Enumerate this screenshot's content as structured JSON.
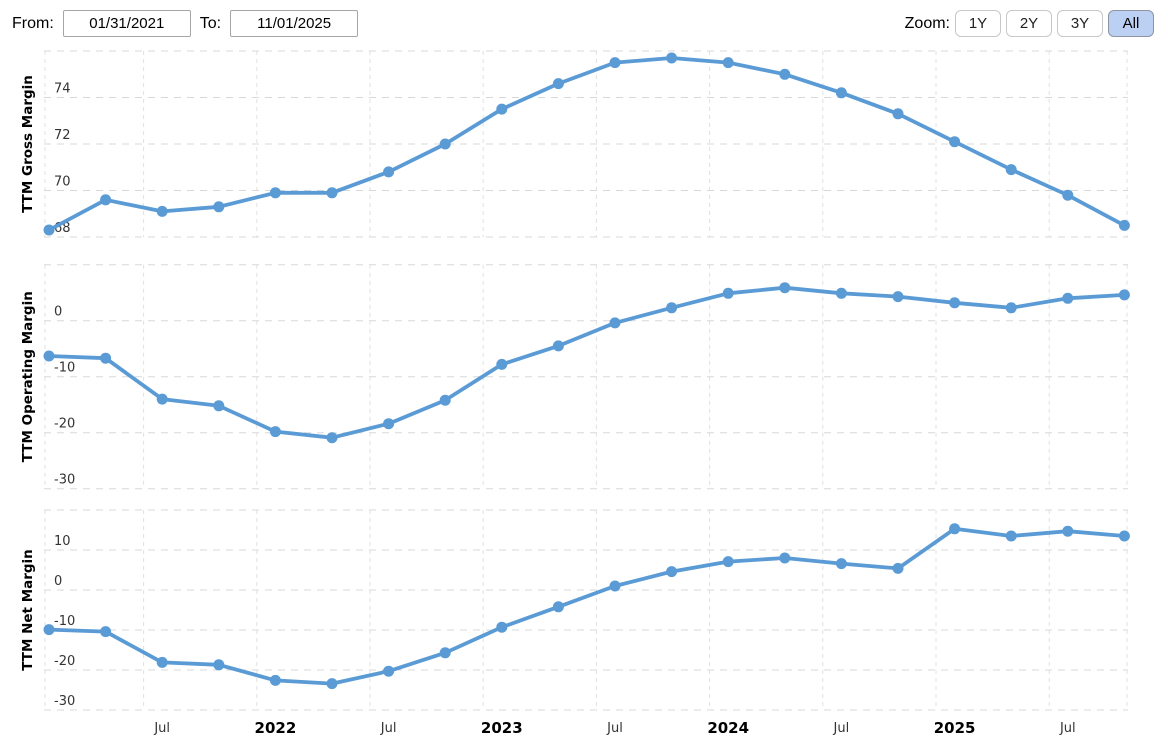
{
  "header": {
    "from_label": "From:",
    "from_value": "01/31/2021",
    "to_label": "To:",
    "to_value": "11/01/2025",
    "zoom_label": "Zoom:",
    "zoom_buttons": [
      {
        "label": "1Y",
        "active": false
      },
      {
        "label": "2Y",
        "active": false
      },
      {
        "label": "3Y",
        "active": false
      },
      {
        "label": "All",
        "active": true
      }
    ]
  },
  "colors": {
    "series_line": "#5b9bd5",
    "marker": "#5b9bd5",
    "grid_horizontal": "#d8d8d8",
    "grid_vertical": "#e0e0e0",
    "tick_text": "#333333",
    "year_text": "#000000",
    "axis_title_text": "#000000",
    "active_zoom_bg": "#bcd0f4"
  },
  "x_axis": {
    "tick_labels": [
      {
        "label": "Jul",
        "point_index": 2,
        "bold": false
      },
      {
        "label": "2022",
        "point_index": 4,
        "bold": true
      },
      {
        "label": "Jul",
        "point_index": 6,
        "bold": false
      },
      {
        "label": "2023",
        "point_index": 8,
        "bold": true
      },
      {
        "label": "Jul",
        "point_index": 10,
        "bold": false
      },
      {
        "label": "2024",
        "point_index": 12,
        "bold": true
      },
      {
        "label": "Jul",
        "point_index": 14,
        "bold": false
      },
      {
        "label": "2025",
        "point_index": 16,
        "bold": true
      },
      {
        "label": "Jul",
        "point_index": 18,
        "bold": false
      }
    ]
  },
  "chart_data": [
    {
      "type": "line",
      "ylabel": "TTM Gross Margin",
      "x": [
        "2021-01-31",
        "2021-04-30",
        "2021-07-31",
        "2021-10-31",
        "2022-01-31",
        "2022-04-30",
        "2022-07-31",
        "2022-10-31",
        "2023-01-31",
        "2023-04-30",
        "2023-07-31",
        "2023-10-31",
        "2024-01-31",
        "2024-04-30",
        "2024-07-31",
        "2024-10-31",
        "2025-01-31",
        "2025-04-30",
        "2025-07-31",
        "2025-10-31"
      ],
      "values": [
        68.3,
        69.6,
        69.1,
        69.3,
        69.9,
        69.9,
        70.8,
        72.0,
        73.5,
        74.6,
        75.5,
        75.7,
        75.5,
        75.0,
        74.2,
        73.3,
        72.1,
        70.9,
        69.8,
        68.5
      ],
      "ylim": [
        68,
        76
      ],
      "yticks": [
        74,
        72,
        70,
        68
      ],
      "grid": true,
      "legend": false
    },
    {
      "type": "line",
      "ylabel": "TTM Operating Margin",
      "x": [
        "2021-01-31",
        "2021-04-30",
        "2021-07-31",
        "2021-10-31",
        "2022-01-31",
        "2022-04-30",
        "2022-07-31",
        "2022-10-31",
        "2023-01-31",
        "2023-04-30",
        "2023-07-31",
        "2023-10-31",
        "2024-01-31",
        "2024-04-30",
        "2024-07-31",
        "2024-10-31",
        "2025-01-31",
        "2025-04-30",
        "2025-07-31",
        "2025-10-31"
      ],
      "values": [
        -6.3,
        -6.7,
        -14.0,
        -15.2,
        -19.8,
        -20.9,
        -18.4,
        -14.2,
        -7.8,
        -4.5,
        -0.4,
        2.3,
        4.9,
        5.9,
        4.9,
        4.3,
        3.2,
        2.3,
        4.0,
        4.6
      ],
      "ylim": [
        -30,
        10
      ],
      "yticks": [
        0,
        -10,
        -20,
        -30
      ],
      "grid": true,
      "legend": false
    },
    {
      "type": "line",
      "ylabel": "TTM Net Margin",
      "x": [
        "2021-01-31",
        "2021-04-30",
        "2021-07-31",
        "2021-10-31",
        "2022-01-31",
        "2022-04-30",
        "2022-07-31",
        "2022-10-31",
        "2023-01-31",
        "2023-04-30",
        "2023-07-31",
        "2023-10-31",
        "2024-01-31",
        "2024-04-30",
        "2024-07-31",
        "2024-10-31",
        "2025-01-31",
        "2025-04-30",
        "2025-07-31",
        "2025-10-31"
      ],
      "values": [
        -9.9,
        -10.4,
        -18.1,
        -18.7,
        -22.6,
        -23.4,
        -20.3,
        -15.7,
        -9.3,
        -4.2,
        1.0,
        4.6,
        7.1,
        8.0,
        6.6,
        5.4,
        15.3,
        13.5,
        14.7,
        13.5
      ],
      "ylim": [
        -30,
        20
      ],
      "yticks": [
        10,
        0,
        -10,
        -20,
        -30
      ],
      "grid": true,
      "legend": false
    }
  ]
}
